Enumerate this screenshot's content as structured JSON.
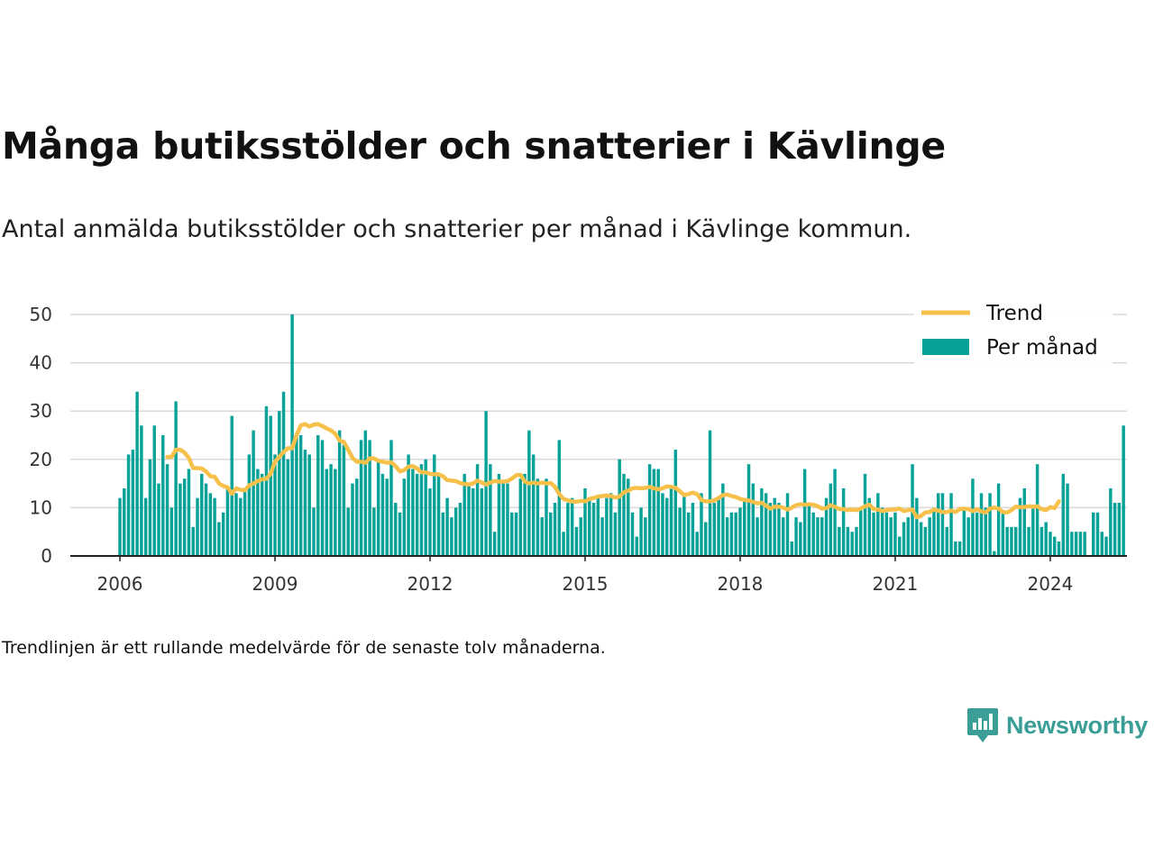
{
  "header": {
    "title": "Många butiksstölder och snatterier i Kävlinge",
    "subtitle": "Antal anmälda butiksstölder och snatterier per månad i Kävlinge kommun."
  },
  "footnote": "Trendlinjen är ett rullande medelvärde för de senaste tolv månaderna.",
  "brand": {
    "name": "Newsworthy",
    "icon": "newsworthy-logo-icon",
    "color": "#3a9e96"
  },
  "chart_data": {
    "type": "bar",
    "title": "",
    "xlabel": "",
    "ylabel": "",
    "ylim": [
      0,
      50
    ],
    "yticks": [
      0,
      10,
      20,
      30,
      40,
      50
    ],
    "xticks": [
      "2006",
      "2009",
      "2012",
      "2015",
      "2018",
      "2021",
      "2024"
    ],
    "xlim": [
      "2006-01",
      "2024-07"
    ],
    "grid": true,
    "legend_position": "top-right",
    "colors": {
      "bars": "#06a298",
      "trend": "#f7c04a",
      "grid": "#d9d9d9",
      "axis": "#222222"
    },
    "start_month": "2006-01",
    "series": [
      {
        "name": "Per månad",
        "type": "bar",
        "values": [
          12,
          14,
          21,
          22,
          34,
          27,
          12,
          20,
          27,
          15,
          25,
          19,
          10,
          32,
          15,
          16,
          18,
          6,
          12,
          17,
          15,
          13,
          12,
          7,
          9,
          14,
          29,
          13,
          12,
          14,
          21,
          26,
          18,
          17,
          31,
          29,
          21,
          30,
          34,
          20,
          50,
          25,
          25,
          22,
          21,
          10,
          25,
          24,
          18,
          19,
          18,
          26,
          23,
          10,
          15,
          16,
          24,
          26,
          24,
          10,
          20,
          17,
          16,
          24,
          11,
          9,
          16,
          21,
          18,
          17,
          19,
          20,
          14,
          21,
          17,
          9,
          12,
          8,
          10,
          11,
          17,
          15,
          14,
          19,
          14,
          30,
          19,
          5,
          17,
          15,
          15,
          9,
          9,
          16,
          17,
          26,
          21,
          16,
          8,
          16,
          9,
          11,
          24,
          5,
          11,
          12,
          6,
          8,
          14,
          12,
          11,
          12,
          8,
          12,
          13,
          9,
          20,
          17,
          16,
          9,
          4,
          10,
          8,
          19,
          18,
          18,
          13,
          12,
          14,
          22,
          10,
          13,
          9,
          11,
          5,
          13,
          7,
          26,
          11,
          12,
          15,
          8,
          9,
          9,
          10,
          12,
          19,
          15,
          8,
          14,
          13,
          11,
          12,
          11,
          8,
          13,
          3,
          8,
          7,
          18,
          11,
          9,
          8,
          8,
          12,
          15,
          18,
          6,
          14,
          6,
          5,
          6,
          10,
          17,
          12,
          9,
          13,
          10,
          9,
          8,
          9,
          4,
          7,
          8,
          19,
          12,
          7,
          6,
          8,
          10,
          13,
          13,
          6,
          13,
          3,
          3,
          10,
          8,
          16,
          9,
          13,
          10,
          13,
          1,
          15,
          9,
          6,
          6,
          6,
          12,
          14,
          6,
          10,
          19,
          6,
          7,
          5,
          4,
          3,
          17,
          15,
          5,
          5,
          5,
          5,
          0,
          9,
          9,
          5,
          4,
          14,
          11,
          11,
          27
        ]
      },
      {
        "name": "Trend",
        "type": "line",
        "start_month": "2006-12",
        "values": [
          20.5,
          20.5,
          22.0,
          22.0,
          21.4,
          20.3,
          18.2,
          18.2,
          18.1,
          17.5,
          16.5,
          16.4,
          15.0,
          14.5,
          14.2,
          12.9,
          14.0,
          13.7,
          13.6,
          14.6,
          15.0,
          15.5,
          15.9,
          16.0,
          17.0,
          19.5,
          20.5,
          21.5,
          22.3,
          22.3,
          25.0,
          27.0,
          27.3,
          26.8,
          27.2,
          27.3,
          26.9,
          26.4,
          26.0,
          25.3,
          23.9,
          23.6,
          22.0,
          20.3,
          19.5,
          19.5,
          19.3,
          20.2,
          20.2,
          19.7,
          19.5,
          19.3,
          19.4,
          18.6,
          17.5,
          17.8,
          18.5,
          18.6,
          18.1,
          17.3,
          17.3,
          17.0,
          16.9,
          16.9,
          16.5,
          15.7,
          15.6,
          15.5,
          15.1,
          14.9,
          14.8,
          15.0,
          15.6,
          15.2,
          14.8,
          15.2,
          15.5,
          15.4,
          15.4,
          15.5,
          16.0,
          16.7,
          16.8,
          15.4,
          15.0,
          15.2,
          15.0,
          15.2,
          15.0,
          15.1,
          14.3,
          12.8,
          11.8,
          11.5,
          11.3,
          11.2,
          11.4,
          11.3,
          11.8,
          12.0,
          12.3,
          12.4,
          12.5,
          12.4,
          12.1,
          12.3,
          13.2,
          13.5,
          14.0,
          14.1,
          14.0,
          14.1,
          14.3,
          14.0,
          13.8,
          14.0,
          14.4,
          14.3,
          14.1,
          13.4,
          12.6,
          12.8,
          13.1,
          12.8,
          11.6,
          11.3,
          11.3,
          11.5,
          12.0,
          12.6,
          12.7,
          12.4,
          12.2,
          11.8,
          11.6,
          11.5,
          11.2,
          10.9,
          11.0,
          10.4,
          9.8,
          10.2,
          10.2,
          10.0,
          9.6,
          10.0,
          10.5,
          10.7,
          10.6,
          10.7,
          10.6,
          10.3,
          9.8,
          9.9,
          10.5,
          10.2,
          9.7,
          9.7,
          9.5,
          9.6,
          9.5,
          9.8,
          10.3,
          10.6,
          9.7,
          9.6,
          9.3,
          9.5,
          9.6,
          9.6,
          9.8,
          9.3,
          9.5,
          9.6,
          8.0,
          8.3,
          9.0,
          9.1,
          9.6,
          9.4,
          9.1,
          9.1,
          9.4,
          9.1,
          9.7,
          9.8,
          9.7,
          9.3,
          9.7,
          9.2,
          9.0,
          9.8,
          10.0,
          9.8,
          9.1,
          9.0,
          9.5,
          10.2,
          10.1,
          10.1,
          10.3,
          10.2,
          10.3,
          9.7,
          9.5,
          10.1,
          9.9,
          11.3
        ]
      }
    ]
  }
}
